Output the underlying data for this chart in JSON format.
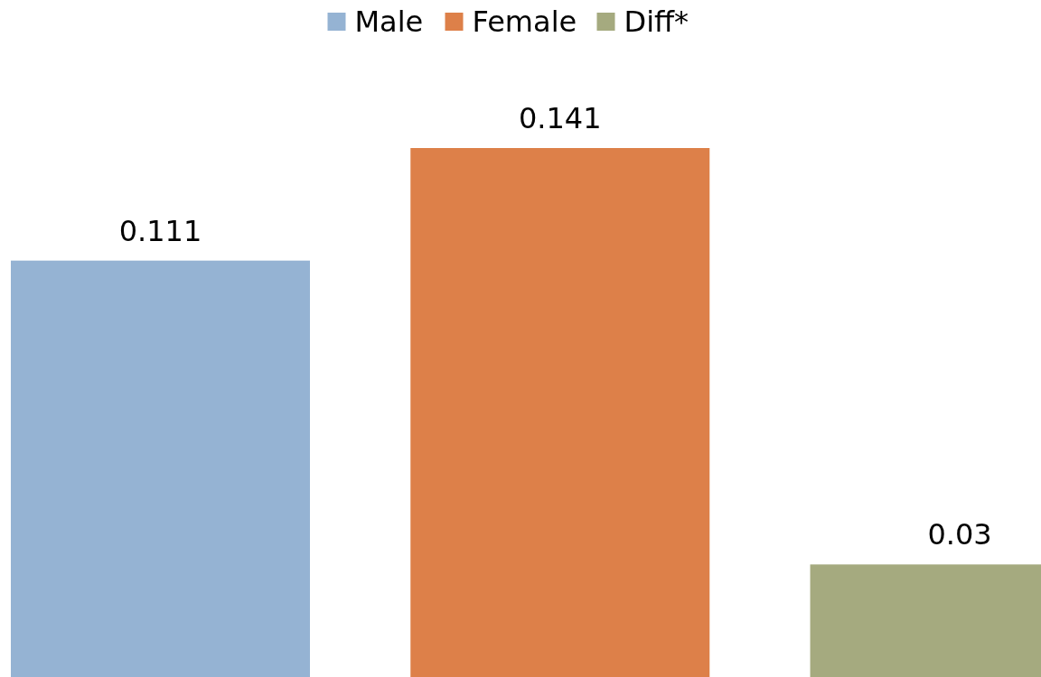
{
  "chart_data": {
    "type": "bar",
    "categories": [
      null
    ],
    "series": [
      {
        "name": "Male",
        "color": "#95b3d3",
        "values": [
          0.111
        ]
      },
      {
        "name": "Female",
        "color": "#dd8049",
        "values": [
          0.141
        ]
      },
      {
        "name": "Diff*",
        "color": "#a5aa7f",
        "values": [
          0.03
        ]
      }
    ],
    "data_labels": true,
    "legend": "top"
  }
}
